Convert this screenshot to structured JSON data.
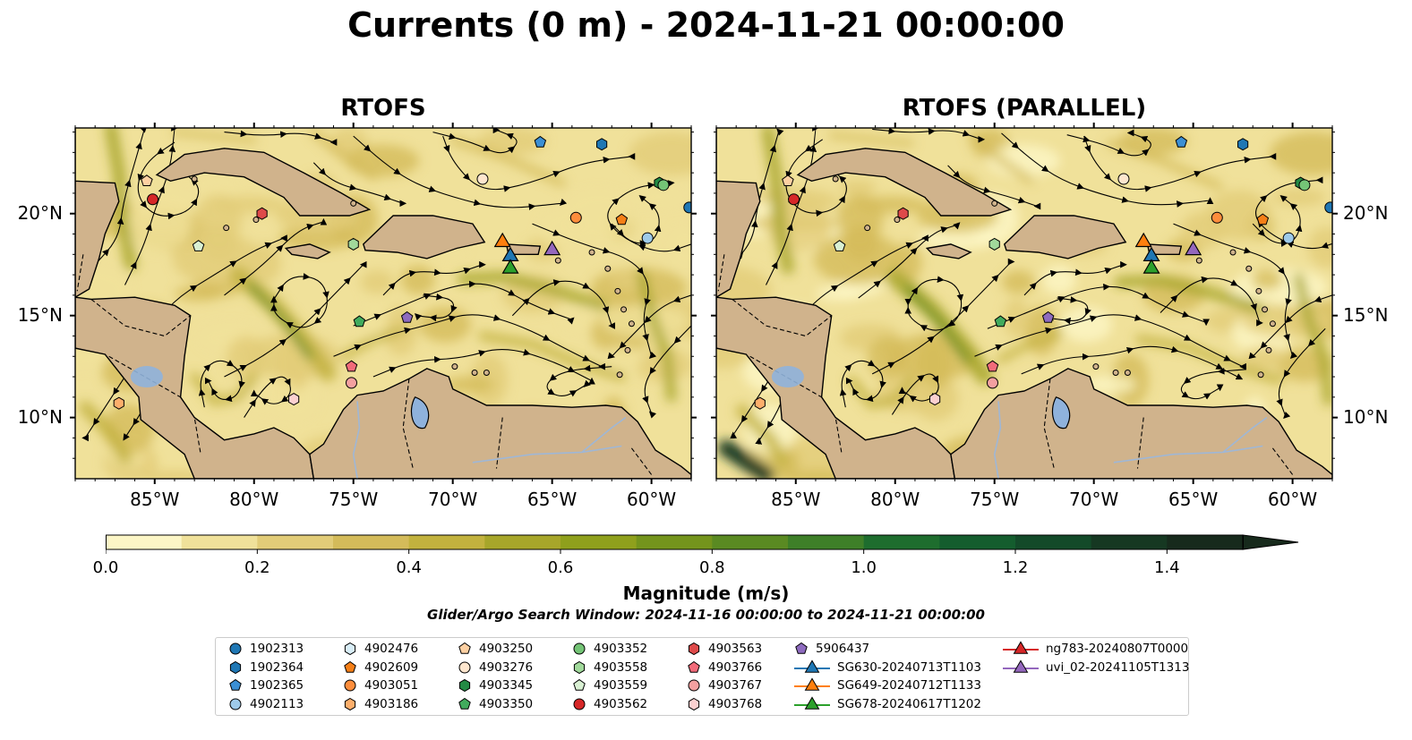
{
  "title": "Currents (0 m) - 2024-11-21 00:00:00",
  "panels": [
    {
      "title": "RTOFS"
    },
    {
      "title": "RTOFS (PARALLEL)"
    }
  ],
  "lon_ticks": [
    "85°W",
    "80°W",
    "75°W",
    "70°W",
    "65°W",
    "60°W"
  ],
  "lat_ticks": [
    "20°N",
    "15°N",
    "10°N"
  ],
  "map_extent": {
    "lon": [
      -89,
      -58
    ],
    "lat": [
      7,
      24.2
    ]
  },
  "colorbar": {
    "label": "Magnitude (m/s)",
    "range": [
      0,
      1.5
    ],
    "extend": "max",
    "ticks": [
      "0.0",
      "0.2",
      "0.4",
      "0.6",
      "0.8",
      "1.0",
      "1.2",
      "1.4"
    ],
    "colors": [
      "#fcf6c6",
      "#f0e19a",
      "#e2cc78",
      "#d4bb5a",
      "#c2b23e",
      "#a7a62a",
      "#8fa01c",
      "#74941c",
      "#5a8a22",
      "#3e7f28",
      "#1e6d2e",
      "#145d2e",
      "#134a29",
      "#163822",
      "#172a1c"
    ]
  },
  "search_window": "Glider/Argo Search Window: 2024-11-16 00:00:00 to 2024-11-21 00:00:00",
  "colors": {
    "land": "#d0b38c",
    "water_feature": "#8fb2dc",
    "river": "#9fb7d6"
  },
  "legend": [
    {
      "label": "1902313",
      "color": "#1f77b4",
      "marker": "circle"
    },
    {
      "label": "1902364",
      "color": "#1f77b4",
      "marker": "hexagon"
    },
    {
      "label": "1902365",
      "color": "#3b8fd4",
      "marker": "pentagon"
    },
    {
      "label": "4902113",
      "color": "#9ecae9",
      "marker": "circle"
    },
    {
      "label": "4902476",
      "color": "#d8eef8",
      "marker": "hexagon"
    },
    {
      "label": "4902609",
      "color": "#f57f17",
      "marker": "pentagon"
    },
    {
      "label": "4903051",
      "color": "#fd8d3c",
      "marker": "circle"
    },
    {
      "label": "4903186",
      "color": "#fdae6b",
      "marker": "hexagon"
    },
    {
      "label": "4903250",
      "color": "#fdd0a2",
      "marker": "pentagon"
    },
    {
      "label": "4903276",
      "color": "#fee6ce",
      "marker": "circle"
    },
    {
      "label": "4903345",
      "color": "#238b45",
      "marker": "hexagon"
    },
    {
      "label": "4903350",
      "color": "#41ab5d",
      "marker": "pentagon"
    },
    {
      "label": "4903352",
      "color": "#74c476",
      "marker": "circle"
    },
    {
      "label": "4903558",
      "color": "#a1d99b",
      "marker": "hexagon"
    },
    {
      "label": "4903559",
      "color": "#d9f0d3",
      "marker": "pentagon"
    },
    {
      "label": "4903562",
      "color": "#d62728",
      "marker": "circle"
    },
    {
      "label": "4903563",
      "color": "#de4a4a",
      "marker": "hexagon"
    },
    {
      "label": "4903766",
      "color": "#f26b7a",
      "marker": "pentagon"
    },
    {
      "label": "4903767",
      "color": "#f4a0a0",
      "marker": "circle"
    },
    {
      "label": "4903768",
      "color": "#fcd0d0",
      "marker": "hexagon"
    },
    {
      "label": "5906437",
      "color": "#8e6bbf",
      "marker": "pentagon"
    },
    {
      "label": "SG630-20240713T1103",
      "color": "#1f77b4",
      "marker": "triangle"
    },
    {
      "label": "SG649-20240712T1133",
      "color": "#ff7f0e",
      "marker": "triangle"
    },
    {
      "label": "SG678-20240617T1202",
      "color": "#2ca02c",
      "marker": "triangle"
    },
    {
      "label": "ng783-20240807T0000",
      "color": "#d62728",
      "marker": "triangle"
    },
    {
      "label": "uvi_02-20241105T1313",
      "color": "#9467bd",
      "marker": "triangle"
    }
  ],
  "floats": [
    {
      "id": "1902313",
      "lon": -58.1,
      "lat": 20.3
    },
    {
      "id": "1902364",
      "lon": -62.5,
      "lat": 23.4
    },
    {
      "id": "1902365",
      "lon": -65.6,
      "lat": 23.5
    },
    {
      "id": "4902113",
      "lon": -60.2,
      "lat": 18.8
    },
    {
      "id": "4902609",
      "lon": -61.5,
      "lat": 19.7
    },
    {
      "id": "4903051",
      "lon": -63.8,
      "lat": 19.8
    },
    {
      "id": "4903250",
      "lon": -85.4,
      "lat": 21.6
    },
    {
      "id": "4903276",
      "lon": -68.5,
      "lat": 21.7
    },
    {
      "id": "4903345",
      "lon": -59.6,
      "lat": 21.5
    },
    {
      "id": "4903350",
      "lon": -74.7,
      "lat": 14.7
    },
    {
      "id": "4903352",
      "lon": -59.4,
      "lat": 21.4
    },
    {
      "id": "4903558",
      "lon": -75.0,
      "lat": 18.5
    },
    {
      "id": "4903559",
      "lon": -82.8,
      "lat": 18.4
    },
    {
      "id": "4903562",
      "lon": -85.1,
      "lat": 20.7
    },
    {
      "id": "4903563",
      "lon": -79.6,
      "lat": 20.0
    },
    {
      "id": "4903766",
      "lon": -75.1,
      "lat": 12.5
    },
    {
      "id": "4903767",
      "lon": -75.1,
      "lat": 11.7
    },
    {
      "id": "4903768",
      "lon": -78.0,
      "lat": 10.9
    },
    {
      "id": "5906437",
      "lon": -72.3,
      "lat": 14.9
    },
    {
      "id": "4903186",
      "lon": -86.8,
      "lat": 10.7
    }
  ],
  "gliders": [
    {
      "id": "SG649-20240712T1133",
      "lon": -67.5,
      "lat": 18.6
    },
    {
      "id": "SG630-20240713T1103",
      "lon": -67.1,
      "lat": 17.9
    },
    {
      "id": "SG678-20240617T1202",
      "lon": -67.1,
      "lat": 17.3
    },
    {
      "id": "uvi_02-20241105T1313",
      "lon": -65.0,
      "lat": 18.2
    }
  ]
}
